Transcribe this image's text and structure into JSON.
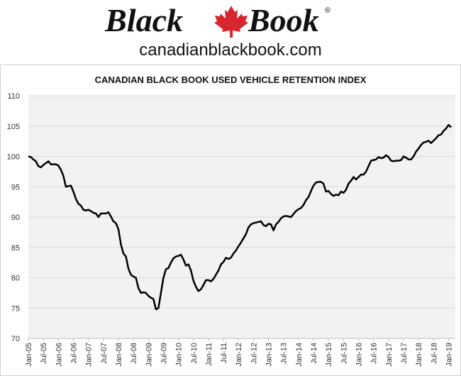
{
  "header": {
    "logo_left": "Black",
    "logo_right": "Book",
    "logo_mark": "®",
    "website": "canadianblackbook.com"
  },
  "chart_data": {
    "type": "line",
    "title": "CANADIAN BLACK BOOK USED VEHICLE RETENTION INDEX",
    "categories": [
      "Jan-05",
      null,
      null,
      null,
      null,
      null,
      "Jul-05",
      null,
      null,
      null,
      null,
      null,
      "Jan-06",
      null,
      null,
      null,
      null,
      null,
      "Jul-06",
      null,
      null,
      null,
      null,
      null,
      "Jan-07",
      null,
      null,
      null,
      null,
      null,
      "Jul-07",
      null,
      null,
      null,
      null,
      null,
      "Jan-08",
      null,
      null,
      null,
      null,
      null,
      "Jul-08",
      null,
      null,
      null,
      null,
      null,
      "Jan-09",
      null,
      null,
      null,
      null,
      null,
      "Jul-09",
      null,
      null,
      null,
      null,
      null,
      "Jan-10",
      null,
      null,
      null,
      null,
      null,
      "Jul-10",
      null,
      null,
      null,
      null,
      null,
      "Jan-11",
      null,
      null,
      null,
      null,
      null,
      "Jul-11",
      null,
      null,
      null,
      null,
      null,
      "Jan-12",
      null,
      null,
      null,
      null,
      null,
      "Jul-12",
      null,
      null,
      null,
      null,
      null,
      "Jan-13",
      null,
      null,
      null,
      null,
      null,
      "Jul-13",
      null,
      null,
      null,
      null,
      null,
      "Jan-14",
      null,
      null,
      null,
      null,
      null,
      "Jul-14",
      null,
      null,
      null,
      null,
      null,
      "Jan-15",
      null,
      null,
      null,
      null,
      null,
      "Jul-15",
      null,
      null,
      null,
      null,
      null,
      "Jan-16",
      null,
      null,
      null,
      null,
      null,
      "Jul-16",
      null,
      null,
      null,
      null,
      null,
      "Jan-17",
      null,
      null,
      null,
      null,
      null,
      "Jul-17",
      null,
      null,
      null,
      null,
      null,
      "Jan-18",
      null,
      null,
      null,
      null,
      null,
      "Jul-18",
      null,
      null,
      null,
      null,
      null,
      "Jan-19",
      null
    ],
    "values": [
      100,
      99.9,
      99.5,
      99.2,
      98.4,
      98.2,
      98.6,
      98.9,
      99.2,
      98.7,
      98.7,
      98.7,
      98.5,
      97.8,
      96.8,
      95.0,
      95.1,
      95.2,
      94.2,
      93.0,
      92.2,
      91.9,
      91.2,
      91.1,
      91.2,
      91.0,
      90.7,
      90.6,
      90.0,
      90.6,
      90.6,
      90.6,
      90.8,
      90.1,
      89.3,
      89.0,
      88.0,
      85.5,
      84.0,
      83.5,
      81.5,
      80.5,
      80.2,
      80.0,
      78.3,
      77.5,
      77.6,
      77.5,
      77.0,
      76.7,
      76.5,
      74.8,
      75.0,
      77.5,
      80.0,
      81.4,
      81.6,
      82.5,
      83.2,
      83.5,
      83.6,
      83.8,
      83.0,
      82.0,
      82.2,
      81.2,
      79.5,
      78.5,
      77.8,
      78.1,
      78.8,
      79.6,
      79.6,
      79.4,
      79.8,
      80.5,
      81.2,
      82.2,
      82.6,
      83.3,
      83.1,
      83.3,
      84.0,
      84.5,
      85.2,
      85.8,
      86.5,
      87.2,
      88.3,
      88.8,
      89.0,
      89.1,
      89.2,
      89.3,
      88.7,
      88.5,
      88.9,
      88.8,
      87.8,
      88.8,
      89.2,
      89.8,
      90.1,
      90.2,
      90.1,
      90.0,
      90.5,
      91.0,
      91.3,
      91.5,
      92.0,
      92.8,
      93.3,
      94.3,
      95.2,
      95.7,
      95.8,
      95.8,
      95.5,
      94.2,
      94.3,
      93.8,
      93.5,
      93.7,
      93.6,
      94.2,
      94.0,
      94.5,
      95.5,
      96.0,
      96.6,
      96.2,
      96.6,
      97.0,
      97.0,
      97.5,
      98.4,
      99.3,
      99.4,
      99.5,
      99.9,
      99.7,
      99.8,
      100.2,
      99.9,
      99.3,
      99.2,
      99.3,
      99.3,
      99.4,
      100.0,
      99.8,
      99.5,
      99.5,
      100.0,
      100.8,
      101.3,
      101.9,
      102.3,
      102.4,
      102.6,
      102.2,
      102.6,
      103.0,
      103.5,
      103.6,
      104.2,
      104.6,
      105.2,
      104.8
    ],
    "color": "#000000",
    "ylim": [
      70,
      110
    ],
    "yticks": [
      70,
      75,
      80,
      85,
      90,
      95,
      100,
      105,
      110
    ],
    "grid": true
  }
}
